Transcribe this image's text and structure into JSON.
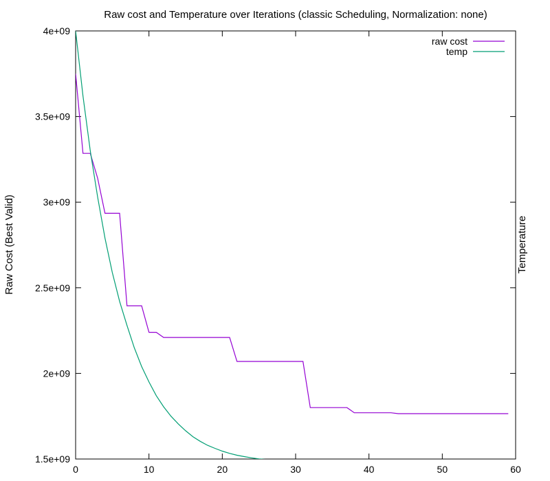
{
  "chart_data": {
    "type": "line",
    "title": "Raw cost and Temperature over Iterations (classic Scheduling, Normalization: none)",
    "xlabel": "",
    "ylabel": "Raw Cost (Best Valid)",
    "y2label": "Temperature",
    "xlim": [
      0,
      60
    ],
    "ylim": [
      1500000000,
      4000000000
    ],
    "x_ticks": [
      0,
      10,
      20,
      30,
      40,
      50,
      60
    ],
    "y_ticks": [
      1500000000,
      2000000000,
      2500000000,
      3000000000,
      3500000000,
      4000000000
    ],
    "x_tick_labels": [
      "0",
      "10",
      "20",
      "30",
      "40",
      "50",
      "60"
    ],
    "y_tick_labels": [
      "1.5e+09",
      "2e+09",
      "2.5e+09",
      "3e+09",
      "3.5e+09",
      "4e+09"
    ],
    "grid": false,
    "legend_position": "top-right",
    "series": [
      {
        "name": "raw cost",
        "color": "#9400d3",
        "x": [
          0,
          1,
          2,
          3,
          4,
          5,
          6,
          7,
          8,
          9,
          10,
          11,
          12,
          13,
          14,
          15,
          16,
          17,
          18,
          19,
          20,
          21,
          22,
          23,
          24,
          25,
          26,
          27,
          28,
          29,
          30,
          31,
          32,
          33,
          34,
          35,
          36,
          37,
          38,
          39,
          40,
          41,
          42,
          43,
          44,
          45,
          46,
          47,
          48,
          49,
          50,
          51,
          52,
          53,
          54,
          55,
          56,
          57,
          58,
          59
        ],
        "values": [
          3750000000,
          3285000000,
          3285000000,
          3140000000,
          2935000000,
          2935000000,
          2935000000,
          2395000000,
          2395000000,
          2395000000,
          2240000000,
          2240000000,
          2210000000,
          2210000000,
          2210000000,
          2210000000,
          2210000000,
          2210000000,
          2210000000,
          2210000000,
          2210000000,
          2210000000,
          2070000000,
          2070000000,
          2070000000,
          2070000000,
          2070000000,
          2070000000,
          2070000000,
          2070000000,
          2070000000,
          2070000000,
          1800000000,
          1800000000,
          1800000000,
          1800000000,
          1800000000,
          1800000000,
          1770000000,
          1770000000,
          1770000000,
          1770000000,
          1770000000,
          1770000000,
          1765000000,
          1765000000,
          1765000000,
          1765000000,
          1765000000,
          1765000000,
          1765000000,
          1765000000,
          1765000000,
          1765000000,
          1765000000,
          1765000000,
          1765000000,
          1765000000,
          1765000000,
          1765000000
        ]
      },
      {
        "name": "temp",
        "color": "#009e73",
        "x": [
          0,
          1,
          2,
          3,
          4,
          5,
          6,
          7,
          8,
          9,
          10,
          11,
          12,
          13,
          14,
          15,
          16,
          17,
          18,
          19,
          20,
          21,
          22,
          23,
          24,
          25,
          26,
          27,
          28,
          29,
          30,
          31,
          32,
          33,
          34,
          35,
          36,
          37,
          38,
          39,
          40,
          41,
          42,
          43
        ],
        "values": [
          4000000000,
          3620000000,
          3300000000,
          3030000000,
          2790000000,
          2590000000,
          2420000000,
          2280000000,
          2150000000,
          2040000000,
          1950000000,
          1870000000,
          1805000000,
          1750000000,
          1705000000,
          1665000000,
          1630000000,
          1603000000,
          1580000000,
          1562000000,
          1546000000,
          1533000000,
          1522000000,
          1514000000,
          1507000000,
          1501000000,
          1497000000,
          1493000000,
          1490000000,
          1488000000,
          1486000000,
          1485000000,
          1484000000,
          1483000000,
          1482500000,
          1482000000,
          1481500000,
          1481000000,
          1480800000,
          1480600000,
          1480400000,
          1480300000,
          1480200000,
          1480100000
        ]
      }
    ]
  }
}
